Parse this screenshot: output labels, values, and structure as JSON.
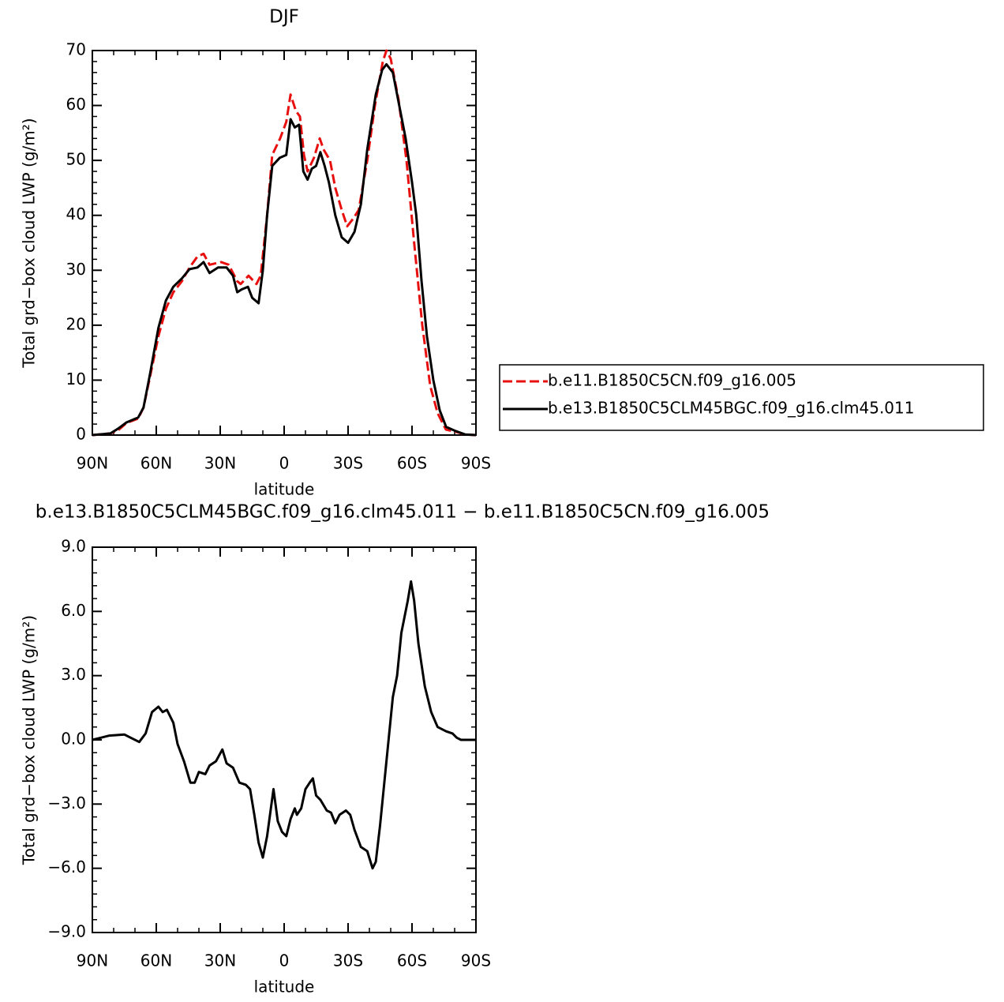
{
  "chart_data": [
    {
      "type": "line",
      "title": "DJF",
      "xlabel": "latitude",
      "ylabel": "Total grd−box cloud LWP (g/m²)",
      "xlim": [
        90,
        -90
      ],
      "ylim": [
        0,
        70
      ],
      "xticks": [
        {
          "value": 90,
          "label": "90N"
        },
        {
          "value": 60,
          "label": "60N"
        },
        {
          "value": 30,
          "label": "30N"
        },
        0,
        {
          "value": -30,
          "label": "30S"
        },
        {
          "value": -60,
          "label": "60S"
        },
        {
          "value": -90,
          "label": "90S"
        }
      ],
      "yticks": [
        0,
        10,
        20,
        30,
        40,
        50,
        60,
        70
      ],
      "legend": "right",
      "series": [
        {
          "name": "b.e11.B1850C5CN.f09_g16.005",
          "color": "#e8100f",
          "dash": true,
          "x": [
            90,
            81.5,
            77.8,
            74,
            68.5,
            66,
            63,
            59,
            55.5,
            52,
            48,
            44.4,
            40.7,
            37.8,
            35,
            29.6,
            26,
            22,
            20.4,
            16.7,
            13,
            11,
            8,
            5.6,
            1.9,
            -1,
            -3,
            -5.5,
            -7.4,
            -9.3,
            -11,
            -14,
            -16.7,
            -18.5,
            -21.5,
            -24,
            -27,
            -29.6,
            -32.6,
            -35,
            -39,
            -42.6,
            -46.3,
            -48,
            -50,
            -53.7,
            -57.4,
            -61,
            -64.8,
            -68.5,
            -72,
            -75.9,
            -81.5,
            -85,
            -90
          ],
          "values": [
            0,
            0.3,
            0.9,
            2.2,
            3,
            5,
            10.5,
            18,
            23,
            26,
            28,
            30.5,
            32.5,
            33,
            31,
            31.5,
            31,
            28,
            27.5,
            29,
            27.5,
            29,
            40,
            51,
            54,
            57,
            62,
            59,
            58,
            51,
            48,
            50.5,
            54,
            52,
            50,
            45,
            41,
            38,
            39.5,
            41,
            50,
            60,
            68,
            70,
            68.5,
            61,
            50,
            35,
            20,
            9,
            4,
            1,
            0.5,
            0.1,
            0
          ]
        },
        {
          "name": "b.e13.B1850C5CLM45BGC.f09_g16.clm45.011",
          "color": "#000000",
          "dash": false,
          "x": [
            90,
            81.5,
            77.8,
            74,
            68.5,
            66,
            63,
            59,
            55.5,
            52,
            48,
            44.4,
            40.7,
            37.8,
            35,
            31,
            27,
            24,
            22,
            20,
            17,
            15,
            12,
            10,
            8,
            5.6,
            2,
            -1,
            -3,
            -5,
            -7,
            -9,
            -11,
            -13,
            -15,
            -17,
            -19,
            -21,
            -24,
            -27,
            -30,
            -33,
            -36,
            -39,
            -43,
            -46,
            -48,
            -51,
            -54,
            -57,
            -60,
            -62,
            -64.5,
            -67,
            -70,
            -73,
            -76,
            -80,
            -85,
            -90
          ],
          "values": [
            0,
            0.3,
            1.2,
            2.3,
            3.2,
            5,
            11,
            19.5,
            24.5,
            27,
            28.5,
            30.2,
            30.5,
            31.5,
            29.5,
            30.5,
            30.5,
            29,
            26,
            26.5,
            27,
            25,
            24,
            30,
            40,
            49,
            50.5,
            51,
            57.5,
            56,
            56.5,
            48,
            46.5,
            48.5,
            49,
            51.5,
            49,
            46,
            40,
            36,
            35,
            37,
            42,
            52,
            62,
            66.5,
            67.5,
            66,
            60,
            54,
            46,
            40,
            28,
            18,
            10,
            4.5,
            1.5,
            0.8,
            0.1,
            0
          ]
        }
      ]
    },
    {
      "type": "line",
      "title": "b.e13.B1850C5CLM45BGC.f09_g16.clm45.011 − b.e11.B1850C5CN.f09_g16.005",
      "xlabel": "latitude",
      "ylabel": "Total grd−box cloud LWP (g/m²)",
      "xlim": [
        90,
        -90
      ],
      "ylim": [
        -9,
        9
      ],
      "xticks": [
        {
          "value": 90,
          "label": "90N"
        },
        {
          "value": 60,
          "label": "60N"
        },
        {
          "value": 30,
          "label": "30N"
        },
        0,
        {
          "value": -30,
          "label": "30S"
        },
        {
          "value": -60,
          "label": "60S"
        },
        {
          "value": -90,
          "label": "90S"
        }
      ],
      "yticks": [
        {
          "value": -9,
          "label": "−9.0"
        },
        {
          "value": -6,
          "label": "−6.0"
        },
        {
          "value": -3,
          "label": "−3.0"
        },
        {
          "value": 0,
          "label": "0.0"
        },
        {
          "value": 3,
          "label": "3.0"
        },
        {
          "value": 6,
          "label": "6.0"
        },
        {
          "value": 9,
          "label": "9.0"
        }
      ],
      "series": [
        {
          "color": "#000000",
          "dash": false,
          "x": [
            90,
            82,
            75,
            72,
            68,
            65,
            62,
            59,
            57,
            55,
            52,
            50,
            47,
            44,
            42,
            40,
            37,
            35,
            32,
            29,
            27,
            24,
            21,
            18,
            16,
            14,
            12,
            10,
            8,
            5,
            3,
            1,
            -1,
            -3,
            -5,
            -6,
            -8,
            -10,
            -12,
            -13.5,
            -15,
            -17,
            -20,
            -22,
            -24,
            -26,
            -29,
            -31,
            -33,
            -36,
            -39,
            -41.5,
            -43,
            -45,
            -47,
            -49,
            -51,
            -53,
            -55,
            -58,
            -59.5,
            -61,
            -63,
            -66,
            -69,
            -72,
            -76,
            -79,
            -81,
            -83,
            -90
          ],
          "values": [
            0,
            0.2,
            0.25,
            0.1,
            -0.1,
            0.3,
            1.3,
            1.55,
            1.3,
            1.4,
            0.8,
            -0.2,
            -1,
            -2,
            -2,
            -1.5,
            -1.6,
            -1.2,
            -1,
            -0.45,
            -1.1,
            -1.3,
            -2,
            -2.1,
            -2.3,
            -3.5,
            -4.8,
            -5.5,
            -4.5,
            -2.3,
            -3.8,
            -4.3,
            -4.5,
            -3.7,
            -3.2,
            -3.5,
            -3.2,
            -2.3,
            -2,
            -1.8,
            -2.6,
            -2.8,
            -3.3,
            -3.4,
            -3.9,
            -3.5,
            -3.3,
            -3.5,
            -4.2,
            -5,
            -5.2,
            -6,
            -5.7,
            -4,
            -2,
            0,
            2,
            3,
            5,
            6.5,
            7.4,
            6.5,
            4.5,
            2.5,
            1.3,
            0.6,
            0.4,
            0.3,
            0.1,
            0,
            0
          ]
        }
      ]
    }
  ]
}
